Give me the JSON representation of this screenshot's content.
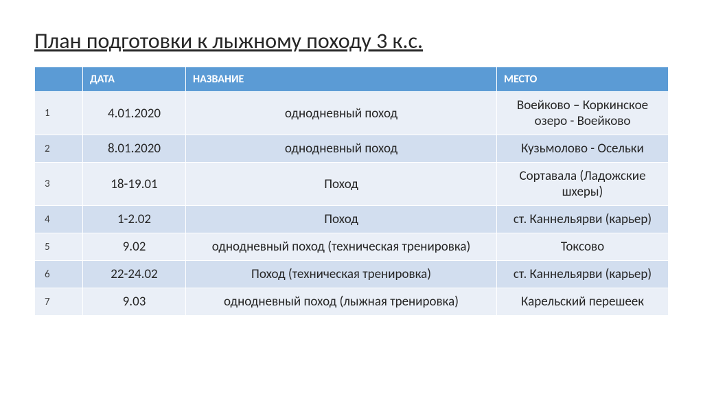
{
  "title": "План подготовки к лыжному походу 3 к.с.",
  "table": {
    "columns": [
      "",
      "ДАТА",
      "НАЗВАНИЕ",
      "МЕСТО"
    ],
    "header_bg": "#5b9bd5",
    "header_color": "#ffffff",
    "band_colors": [
      "#eaeff7",
      "#d2deef"
    ],
    "rows": [
      {
        "n": "1",
        "date": "4.01.2020",
        "name": "однодневный поход",
        "place": "Воейково – Коркинское озеро - Воейково"
      },
      {
        "n": "2",
        "date": "8.01.2020",
        "name": "однодневный поход",
        "place": "Кузьмолово - Осельки"
      },
      {
        "n": "3",
        "date": "18-19.01",
        "name": "Поход",
        "place": "Сортавала (Ладожские шхеры)"
      },
      {
        "n": "4",
        "date": "1-2.02",
        "name": "Поход",
        "place": "ст. Каннельярви (карьер)"
      },
      {
        "n": "5",
        "date": "9.02",
        "name": "однодневный поход  (техническая тренировка)",
        "place": "Токсово"
      },
      {
        "n": "6",
        "date": "22-24.02",
        "name": "Поход (техническая тренировка)",
        "place": "ст. Каннельярви (карьер)"
      },
      {
        "n": "7",
        "date": "9.03",
        "name": "однодневный поход (лыжная тренировка)",
        "place": "Карельский перешеек"
      }
    ]
  }
}
